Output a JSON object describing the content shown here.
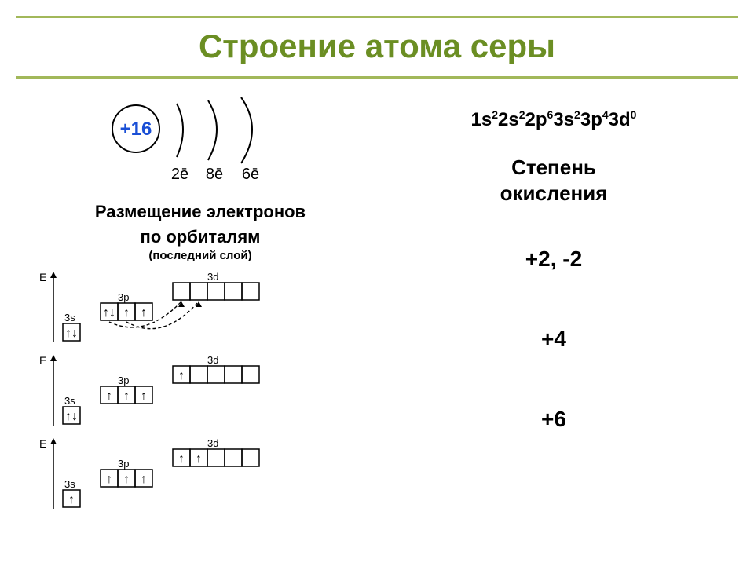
{
  "colors": {
    "title_text": "#6b8e23",
    "title_border": "#a2b85a",
    "nucleus": "#1a4fd6",
    "text": "#000000"
  },
  "title": "Строение атома серы",
  "atom": {
    "nucleus_label": "+16",
    "shells": [
      "2ē",
      "8ē",
      "6ē"
    ]
  },
  "left": {
    "heading_line1": "Размещение электронов",
    "heading_line2": "по орбиталям",
    "subheading": "(последний слой)"
  },
  "electron_config": {
    "parts": [
      {
        "base": "1s",
        "sup": "2"
      },
      {
        "base": "2s",
        "sup": "2"
      },
      {
        "base": "2p",
        "sup": "6"
      },
      {
        "base": "3s",
        "sup": "2"
      },
      {
        "base": "3p",
        "sup": "4"
      },
      {
        "base": "3d",
        "sup": "0"
      }
    ]
  },
  "right": {
    "heading_line1": "Степень",
    "heading_line2": "окисления"
  },
  "orbital_labels": {
    "E": "E",
    "s": "3s",
    "p": "3p",
    "d": "3d"
  },
  "arrows": {
    "up": "↑",
    "down": "↓",
    "updown": "↑↓"
  },
  "states": [
    {
      "oxidation": "+2, -2",
      "s": [
        "↑↓"
      ],
      "p": [
        "↑↓",
        "↑",
        "↑"
      ],
      "d": [
        "",
        "",
        "",
        "",
        ""
      ],
      "promote": true
    },
    {
      "oxidation": "+4",
      "s": [
        "↑↓"
      ],
      "p": [
        "↑",
        "↑",
        "↑"
      ],
      "d": [
        "↑",
        "",
        "",
        "",
        ""
      ],
      "promote": false
    },
    {
      "oxidation": "+6",
      "s": [
        "↑"
      ],
      "p": [
        "↑",
        "↑",
        "↑"
      ],
      "d": [
        "↑",
        "↑",
        "",
        "",
        ""
      ],
      "promote": false
    }
  ],
  "style": {
    "box_size": 22,
    "stroke": "#000000",
    "stroke_width": 1.5,
    "font_arrow_size": 16
  }
}
